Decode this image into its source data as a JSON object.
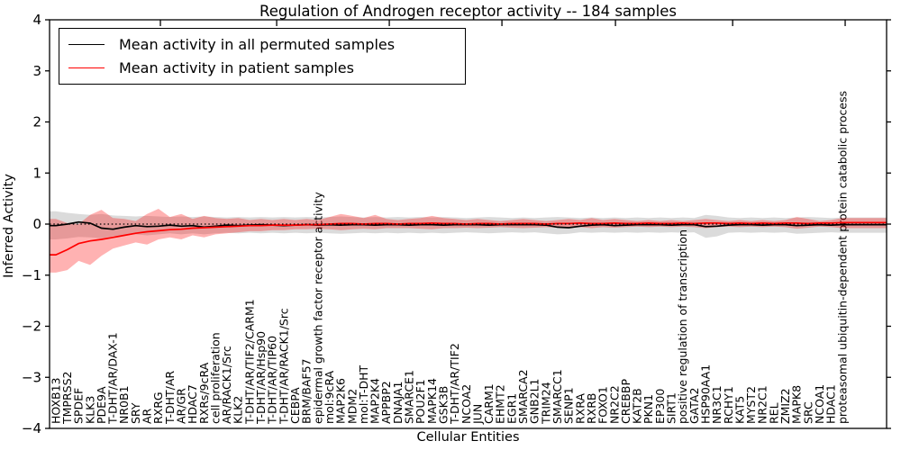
{
  "figure": {
    "title": "Regulation of Androgen receptor activity -- 184 samples",
    "xlabel": "Cellular Entities",
    "ylabel": "Inferred Activity",
    "sample_count_shown_in_title": "184 samples"
  },
  "legend": {
    "entries": [
      {
        "label": "Mean activity in all permuted samples",
        "color": "#000000"
      },
      {
        "label": "Mean activity in patient samples",
        "color": "#ff0000"
      }
    ]
  },
  "chart_data": {
    "type": "line",
    "title": "Regulation of Androgen receptor activity -- 184 samples",
    "xlabel": "Cellular Entities",
    "ylabel": "Inferred Activity",
    "ylim": [
      -4,
      4
    ],
    "yticks": [
      4,
      3,
      2,
      1,
      0,
      -1,
      -2,
      -3,
      -4
    ],
    "ytick_labels": [
      "4",
      "3",
      "2",
      "1",
      "0",
      "−1",
      "−2",
      "−3",
      "−4"
    ],
    "grid": false,
    "legend_position": "upper left",
    "zero_line": {
      "y": 0,
      "style": "dotted",
      "color": "#000000"
    },
    "top_tick_category_positions": [
      9.17,
      19.37,
      29.25,
      39.13,
      49.09,
      59.37,
      69.24
    ],
    "categories": [
      "HOXB13",
      "TMPRSS2",
      "SPDEF",
      "KLK3",
      "PDE9A",
      "T-DHT/AR/DAX-1",
      "NR0B1",
      "SRY",
      "AR",
      "RXRG",
      "T-DHT/AR",
      "AR/GR",
      "HDAC7",
      "RXRs/9cRA",
      "cell proliferation",
      "AR/RACK1/Src",
      "KLK2",
      "T-DHT/AR/TIF2/CARM1",
      "T-DHT/AR/Hsp90",
      "T-DHT/AR/TIP60",
      "T-DHT/AR/RACK1/Src",
      "CEBPA",
      "BRM/BAF57",
      "epidermal growth factor receptor activity",
      "mol:9cRA",
      "MAP2K6",
      "MDM2",
      "mol:T-DHT",
      "MAP2K4",
      "APPBP2",
      "DNAJA1",
      "SMARCE1",
      "POU2F1",
      "MAPK14",
      "GSK3B",
      "T-DHT/AR/TIF2",
      "NCOA2",
      "JUN",
      "CARM1",
      "EHMT2",
      "EGR1",
      "SMARCA2",
      "GNB2L1",
      "TRIM24",
      "SMARCC1",
      "SENP1",
      "RXRA",
      "RXRB",
      "FOXO1",
      "NR2C2",
      "CREBBP",
      "KAT2B",
      "PKN1",
      "EP300",
      "SIRT1",
      "positive regulation of transcription",
      "GATA2",
      "HSP90AA1",
      "NR3C1",
      "RCHY1",
      "KAT5",
      "MYST2",
      "NR2C1",
      "REL",
      "ZMIZ2",
      "MAPK8",
      "SRC",
      "NCOA1",
      "HDAC1",
      "proteasomal ubiquitin-dependent protein catabolic process"
    ],
    "series": [
      {
        "name": "Mean activity in all permuted samples",
        "color": "#000000",
        "values": [
          -0.03,
          0.0,
          0.04,
          0.02,
          -0.08,
          -0.1,
          -0.06,
          -0.03,
          -0.05,
          -0.04,
          -0.02,
          -0.04,
          -0.03,
          -0.06,
          -0.04,
          -0.02,
          -0.03,
          -0.02,
          -0.01,
          -0.02,
          -0.03,
          -0.02,
          -0.01,
          -0.02,
          -0.01,
          -0.02,
          -0.01,
          -0.01,
          -0.02,
          -0.01,
          -0.01,
          -0.02,
          -0.01,
          -0.01,
          -0.02,
          -0.01,
          -0.01,
          -0.01,
          -0.02,
          -0.01,
          -0.01,
          -0.01,
          -0.01,
          -0.02,
          -0.06,
          -0.07,
          -0.04,
          -0.02,
          -0.01,
          -0.03,
          -0.02,
          -0.01,
          -0.01,
          -0.01,
          -0.02,
          -0.01,
          -0.01,
          -0.05,
          -0.04,
          -0.02,
          -0.01,
          -0.01,
          -0.02,
          -0.01,
          -0.01,
          -0.03,
          -0.02,
          -0.01,
          -0.02,
          -0.01
        ]
      },
      {
        "name": "Mean activity in patient samples",
        "color": "#ff0000",
        "values": [
          -0.6,
          -0.5,
          -0.38,
          -0.33,
          -0.3,
          -0.26,
          -0.22,
          -0.18,
          -0.15,
          -0.13,
          -0.11,
          -0.1,
          -0.08,
          -0.07,
          -0.06,
          -0.05,
          -0.04,
          -0.03,
          -0.03,
          -0.02,
          -0.02,
          -0.02,
          -0.01,
          -0.01,
          0.0,
          0.01,
          0.01,
          0.0,
          0.01,
          0.01,
          0.0,
          0.01,
          0.01,
          0.02,
          0.01,
          0.01,
          0.0,
          0.01,
          0.01,
          0.0,
          0.01,
          0.01,
          0.01,
          0.0,
          0.01,
          0.01,
          0.02,
          0.01,
          0.01,
          0.02,
          0.01,
          0.01,
          0.02,
          0.01,
          0.01,
          0.02,
          0.01,
          0.02,
          0.02,
          0.01,
          0.02,
          0.01,
          0.02,
          0.01,
          0.02,
          0.02,
          0.01,
          0.02,
          0.02,
          0.03
        ]
      }
    ],
    "bands": [
      {
        "name": "permuted samples range",
        "color": "#000000",
        "opacity": 0.14,
        "upper": [
          0.25,
          0.22,
          0.2,
          0.18,
          0.2,
          0.17,
          0.16,
          0.15,
          0.16,
          0.15,
          0.14,
          0.15,
          0.14,
          0.15,
          0.14,
          0.13,
          0.14,
          0.13,
          0.14,
          0.13,
          0.14,
          0.13,
          0.14,
          0.13,
          0.14,
          0.15,
          0.14,
          0.13,
          0.14,
          0.13,
          0.14,
          0.13,
          0.14,
          0.13,
          0.14,
          0.13,
          0.12,
          0.13,
          0.14,
          0.13,
          0.12,
          0.13,
          0.12,
          0.13,
          0.14,
          0.13,
          0.12,
          0.13,
          0.12,
          0.13,
          0.12,
          0.13,
          0.12,
          0.13,
          0.12,
          0.13,
          0.12,
          0.18,
          0.16,
          0.13,
          0.12,
          0.13,
          0.12,
          0.13,
          0.12,
          0.13,
          0.14,
          0.13,
          0.12,
          0.13
        ],
        "lower": [
          -0.3,
          -0.28,
          -0.25,
          -0.26,
          -0.28,
          -0.24,
          -0.22,
          -0.2,
          -0.22,
          -0.2,
          -0.18,
          -0.2,
          -0.18,
          -0.2,
          -0.18,
          -0.17,
          -0.18,
          -0.17,
          -0.18,
          -0.17,
          -0.18,
          -0.17,
          -0.18,
          -0.17,
          -0.18,
          -0.19,
          -0.18,
          -0.17,
          -0.18,
          -0.17,
          -0.18,
          -0.17,
          -0.18,
          -0.17,
          -0.18,
          -0.17,
          -0.16,
          -0.17,
          -0.18,
          -0.17,
          -0.16,
          -0.17,
          -0.16,
          -0.18,
          -0.2,
          -0.19,
          -0.16,
          -0.17,
          -0.16,
          -0.17,
          -0.16,
          -0.17,
          -0.16,
          -0.17,
          -0.16,
          -0.17,
          -0.16,
          -0.27,
          -0.24,
          -0.17,
          -0.16,
          -0.17,
          -0.16,
          -0.17,
          -0.16,
          -0.19,
          -0.18,
          -0.17,
          -0.16,
          -0.17
        ]
      },
      {
        "name": "patient samples range",
        "color": "#ff0000",
        "opacity": 0.3,
        "upper": [
          0.1,
          0.02,
          0.0,
          0.18,
          0.28,
          0.12,
          0.1,
          0.06,
          0.2,
          0.3,
          0.14,
          0.2,
          0.1,
          0.16,
          0.12,
          0.1,
          0.12,
          0.08,
          0.1,
          0.08,
          0.1,
          0.08,
          0.1,
          0.08,
          0.14,
          0.2,
          0.16,
          0.12,
          0.18,
          0.1,
          0.08,
          0.1,
          0.12,
          0.16,
          0.12,
          0.1,
          0.08,
          0.1,
          0.08,
          0.06,
          0.08,
          0.1,
          0.08,
          0.06,
          0.08,
          0.1,
          0.08,
          0.12,
          0.08,
          0.1,
          0.08,
          0.06,
          0.08,
          0.06,
          0.08,
          0.06,
          0.08,
          0.1,
          0.08,
          0.06,
          0.08,
          0.06,
          0.08,
          0.06,
          0.08,
          0.14,
          0.1,
          0.06,
          0.08,
          0.12
        ],
        "lower": [
          -0.95,
          -0.9,
          -0.72,
          -0.8,
          -0.62,
          -0.48,
          -0.42,
          -0.36,
          -0.4,
          -0.3,
          -0.26,
          -0.3,
          -0.22,
          -0.26,
          -0.2,
          -0.18,
          -0.16,
          -0.14,
          -0.14,
          -0.12,
          -0.12,
          -0.1,
          -0.1,
          -0.09,
          -0.1,
          -0.12,
          -0.1,
          -0.09,
          -0.1,
          -0.08,
          -0.08,
          -0.08,
          -0.09,
          -0.1,
          -0.08,
          -0.08,
          -0.07,
          -0.08,
          -0.07,
          -0.06,
          -0.07,
          -0.08,
          -0.07,
          -0.06,
          -0.07,
          -0.08,
          -0.06,
          -0.08,
          -0.06,
          -0.07,
          -0.06,
          -0.05,
          -0.06,
          -0.05,
          -0.06,
          -0.05,
          -0.06,
          -0.08,
          -0.06,
          -0.05,
          -0.06,
          -0.05,
          -0.06,
          -0.05,
          -0.06,
          -0.09,
          -0.07,
          -0.05,
          -0.06,
          -0.08
        ]
      }
    ]
  }
}
